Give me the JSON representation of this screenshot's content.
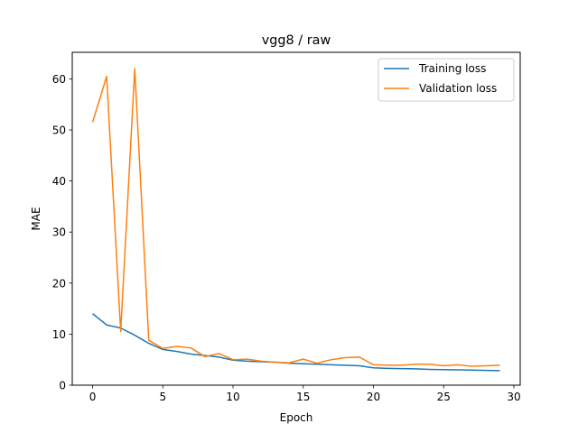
{
  "chart_data": {
    "type": "line",
    "title": "vgg8 / raw",
    "xlabel": "Epoch",
    "ylabel": "MAE",
    "xlim": [
      -1.45,
      30.45
    ],
    "ylim": [
      0,
      65.2
    ],
    "xticks": [
      0,
      5,
      10,
      15,
      20,
      25,
      30
    ],
    "yticks": [
      0,
      10,
      20,
      30,
      40,
      50,
      60
    ],
    "grid": false,
    "legend_position": "top-right",
    "x": [
      0,
      1,
      2,
      3,
      4,
      5,
      6,
      7,
      8,
      9,
      10,
      11,
      12,
      13,
      14,
      15,
      16,
      17,
      18,
      19,
      20,
      21,
      22,
      23,
      24,
      25,
      26,
      27,
      28,
      29
    ],
    "series": [
      {
        "name": "Training loss",
        "color": "#1f77b4",
        "values": [
          14.0,
          11.8,
          11.2,
          9.8,
          8.2,
          7.0,
          6.6,
          6.1,
          5.8,
          5.5,
          4.9,
          4.7,
          4.6,
          4.5,
          4.3,
          4.2,
          4.1,
          4.0,
          3.9,
          3.8,
          3.4,
          3.3,
          3.25,
          3.2,
          3.1,
          3.05,
          3.0,
          2.95,
          2.9,
          2.85
        ]
      },
      {
        "name": "Validation loss",
        "color": "#ff7f0e",
        "values": [
          51.5,
          60.5,
          10.5,
          62.0,
          8.8,
          7.2,
          7.6,
          7.3,
          5.6,
          6.2,
          5.0,
          5.1,
          4.7,
          4.5,
          4.4,
          5.1,
          4.3,
          5.0,
          5.4,
          5.5,
          4.0,
          3.9,
          3.9,
          4.1,
          4.1,
          3.8,
          4.0,
          3.7,
          3.8,
          3.9
        ]
      }
    ]
  }
}
